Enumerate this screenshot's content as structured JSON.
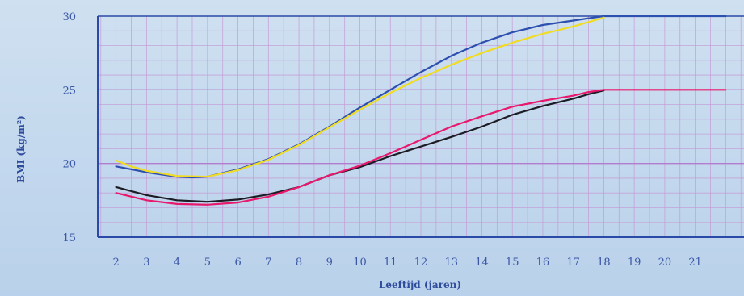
{
  "chart_data": {
    "type": "line",
    "title": "",
    "xlabel": "Leeftijd (jaren)",
    "ylabel": "BMI (kg/m²)",
    "xlim": [
      1.4,
      22.6
    ],
    "ylim": [
      15,
      30
    ],
    "x_ticks": [
      "2",
      "3",
      "4",
      "5",
      "6",
      "7",
      "8",
      "9",
      "10",
      "11",
      "12",
      "13",
      "14",
      "15",
      "16",
      "17",
      "18",
      "19",
      "20",
      "21"
    ],
    "y_ticks": [
      "15",
      "20",
      "25",
      "30"
    ],
    "grid": true,
    "legend": "none",
    "series": [
      {
        "color": "#2d4fb0",
        "x": [
          2,
          3,
          4,
          4.5,
          5,
          5.5,
          6,
          7,
          8,
          9,
          10,
          11,
          12,
          13,
          14,
          15,
          16,
          17,
          17.5,
          18,
          19,
          20,
          21,
          22
        ],
        "y": [
          19.8,
          19.4,
          19.1,
          19.05,
          19.1,
          19.35,
          19.6,
          20.3,
          21.3,
          22.5,
          23.8,
          25.0,
          26.2,
          27.3,
          28.2,
          28.9,
          29.4,
          29.7,
          29.85,
          30,
          30,
          30,
          30,
          30
        ]
      },
      {
        "color": "#f0dc23",
        "x": [
          2,
          2.5,
          3,
          4,
          5,
          6,
          7,
          8,
          9,
          10,
          11,
          12,
          13,
          14,
          15,
          16,
          17,
          17.5,
          18
        ],
        "y": [
          20.2,
          19.8,
          19.5,
          19.15,
          19.1,
          19.55,
          20.25,
          21.25,
          22.45,
          23.65,
          24.8,
          25.8,
          26.7,
          27.5,
          28.2,
          28.8,
          29.3,
          29.6,
          29.9
        ]
      },
      {
        "color": "#1c1c24",
        "x": [
          2,
          3,
          4,
          5,
          6,
          7,
          8,
          9,
          10,
          11,
          12,
          13,
          14,
          15,
          16,
          17,
          17.5,
          18
        ],
        "y": [
          18.4,
          17.85,
          17.5,
          17.4,
          17.55,
          17.9,
          18.4,
          19.2,
          19.75,
          20.5,
          21.15,
          21.8,
          22.5,
          23.3,
          23.9,
          24.4,
          24.7,
          24.95
        ]
      },
      {
        "color": "#e8186c",
        "x": [
          2,
          3,
          4,
          5,
          6,
          7,
          8,
          9,
          10,
          11,
          12,
          13,
          14,
          15,
          16,
          17,
          17.5,
          18,
          19,
          20,
          21,
          22
        ],
        "y": [
          18.0,
          17.5,
          17.25,
          17.2,
          17.35,
          17.75,
          18.4,
          19.2,
          19.85,
          20.7,
          21.6,
          22.5,
          23.2,
          23.85,
          24.25,
          24.6,
          24.85,
          25,
          25,
          25,
          25,
          25
        ]
      }
    ]
  }
}
